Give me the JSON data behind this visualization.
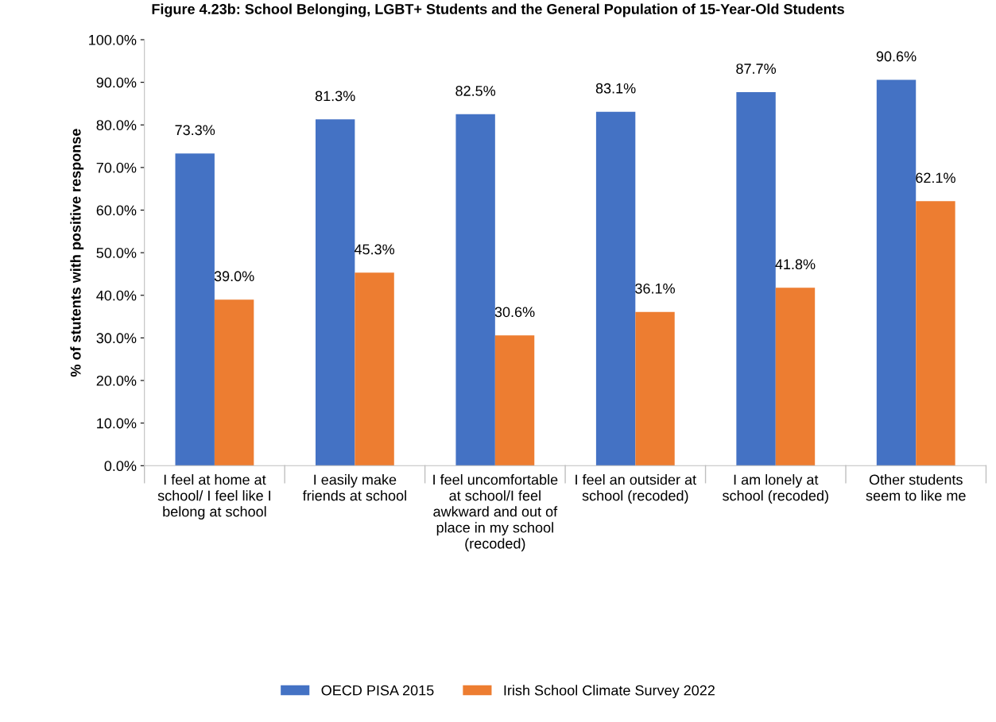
{
  "chart_data": {
    "type": "bar",
    "title": "Figure 4.23b: School Belonging, LGBT+ Students and the General Population of 15-Year-Old Students",
    "ylabel": "% of stutents with positive response",
    "categories": [
      "I feel at home at school/ I feel like I belong at school",
      "I easily make friends at school",
      "I feel uncomfortable at school/I feel awkward and out of place in my school (recoded)",
      "I feel an outsider at school (recoded)",
      "I am lonely at school (recoded)",
      "Other students seem to like me"
    ],
    "series": [
      {
        "name": "OECD PISA 2015",
        "color": "#4472c4",
        "values": [
          73.3,
          81.3,
          82.5,
          83.1,
          87.7,
          90.6
        ],
        "value_labels": [
          "73.3%",
          "81.3%",
          "82.5%",
          "83.1%",
          "87.7%",
          "90.6%"
        ]
      },
      {
        "name": "Irish School Climate Survey 2022",
        "color": "#ed7d31",
        "values": [
          39.0,
          45.3,
          30.6,
          36.1,
          41.8,
          62.1
        ],
        "value_labels": [
          "39.0%",
          "45.3%",
          "30.6%",
          "36.1%",
          "41.8%",
          "62.1%"
        ]
      }
    ],
    "ylim": [
      0,
      100
    ],
    "yticks": [
      {
        "value": 0,
        "label": "0.0%"
      },
      {
        "value": 10,
        "label": "10.0%"
      },
      {
        "value": 20,
        "label": "20.0%"
      },
      {
        "value": 30,
        "label": "30.0%"
      },
      {
        "value": 40,
        "label": "40.0%"
      },
      {
        "value": 50,
        "label": "50.0%"
      },
      {
        "value": 60,
        "label": "60.0%"
      },
      {
        "value": 70,
        "label": "70.0%"
      },
      {
        "value": 80,
        "label": "80.0%"
      },
      {
        "value": 90,
        "label": "90.0%"
      },
      {
        "value": 100,
        "label": "100.0%"
      }
    ],
    "grid": false,
    "legend": "bottom"
  }
}
